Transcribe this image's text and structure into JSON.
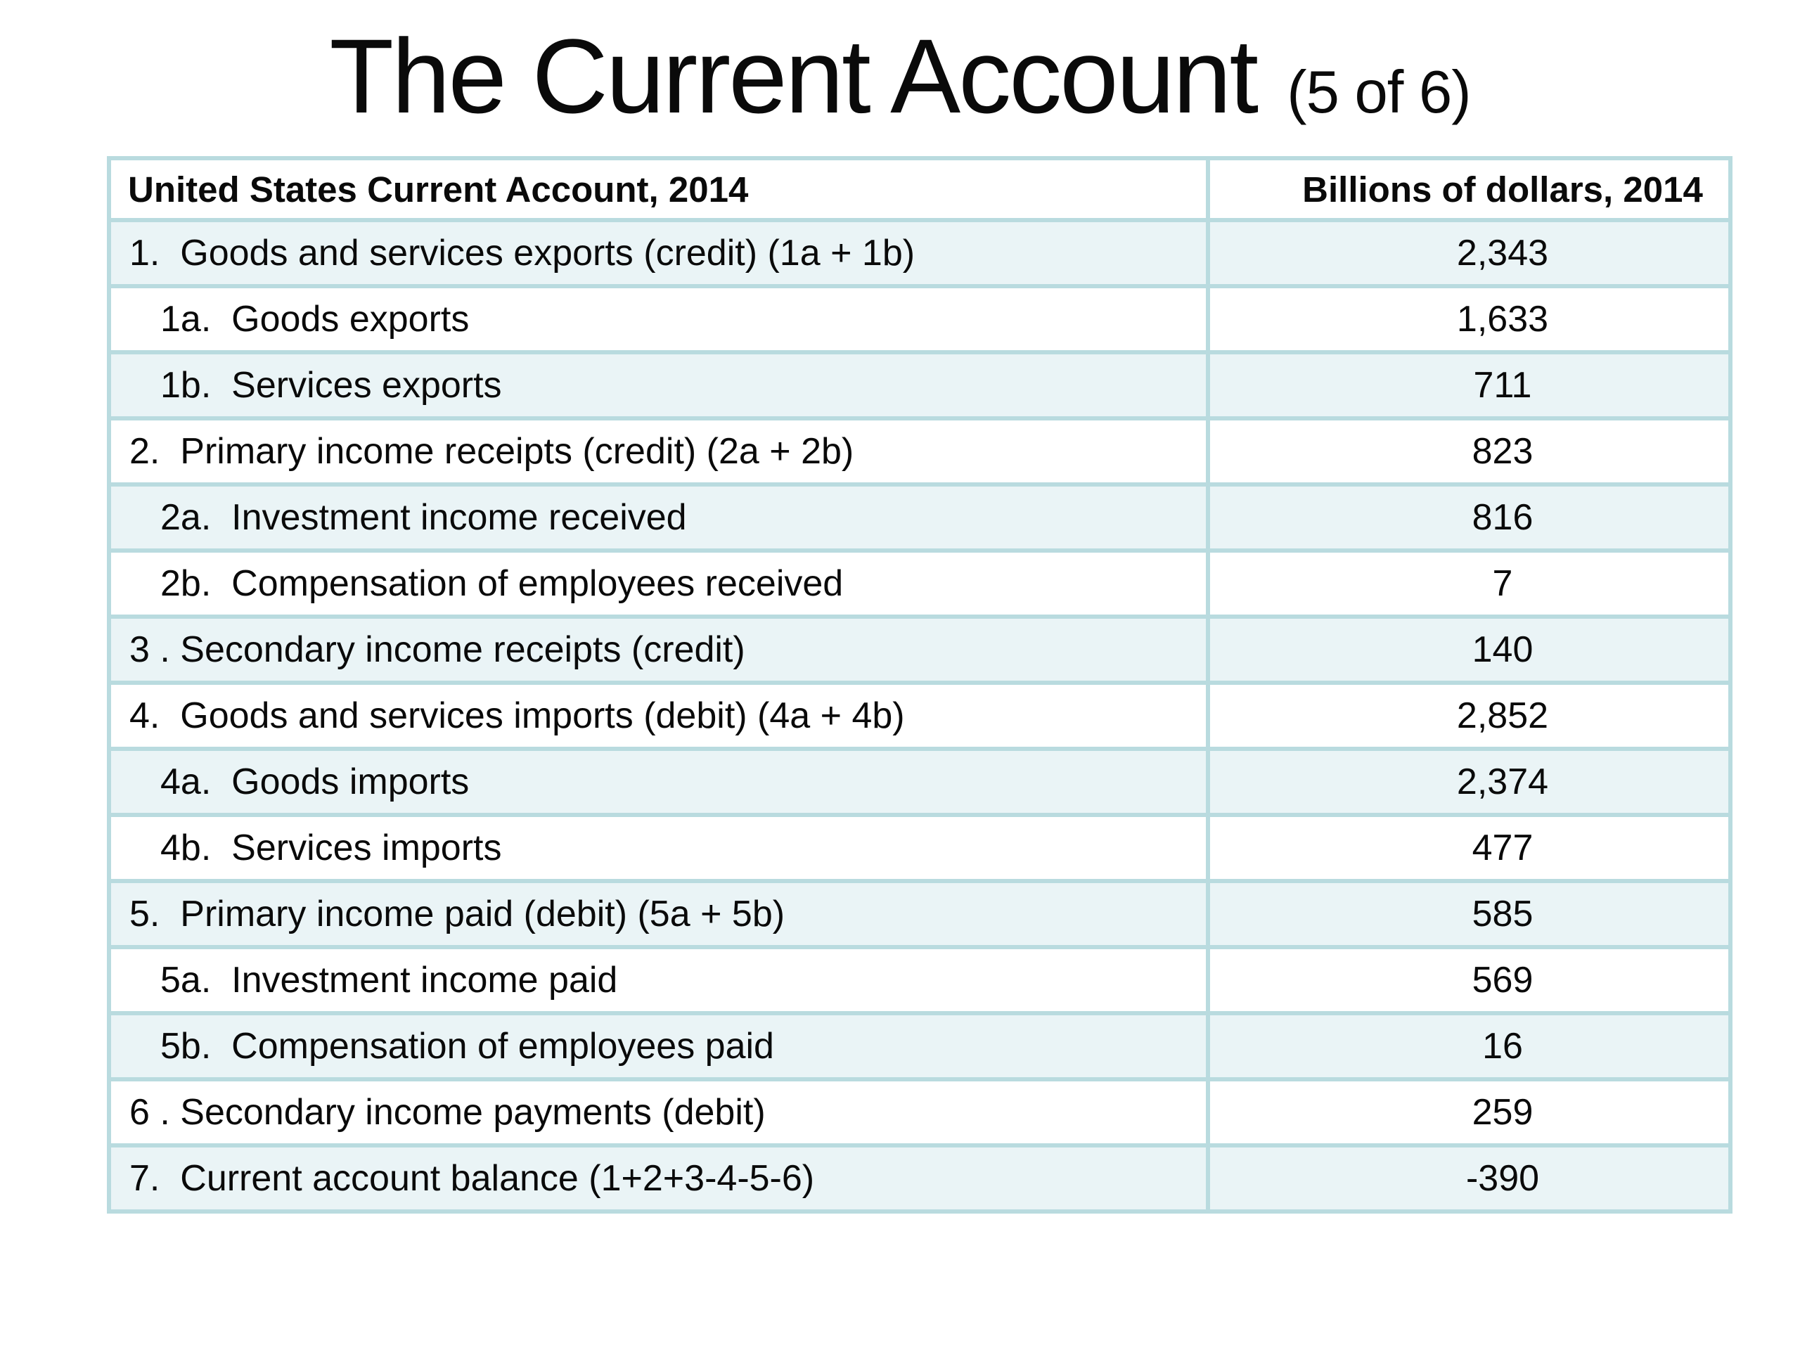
{
  "slide": {
    "title": "The Current Account",
    "title_suffix": "(5 of 6)"
  },
  "table": {
    "header": {
      "label_col": "United States Current Account, 2014",
      "value_col": "Billions of dollars, 2014"
    },
    "rows": [
      {
        "label": "1.  Goods and services exports (credit) (1a + 1b)",
        "value": "2,343",
        "indent": false
      },
      {
        "label": "1a.  Goods exports",
        "value": "1,633",
        "indent": true
      },
      {
        "label": "1b.  Services exports",
        "value": "711",
        "indent": true
      },
      {
        "label": "2.  Primary income receipts (credit) (2a + 2b)",
        "value": "823",
        "indent": false
      },
      {
        "label": "2a.  Investment income received",
        "value": "816",
        "indent": true
      },
      {
        "label": "2b.  Compensation of employees received",
        "value": "7",
        "indent": true
      },
      {
        "label": "3 . Secondary income receipts (credit)",
        "value": "140",
        "indent": false
      },
      {
        "label": "4.  Goods and services imports (debit) (4a + 4b)",
        "value": "2,852",
        "indent": false
      },
      {
        "label": "4a.  Goods imports",
        "value": "2,374",
        "indent": true
      },
      {
        "label": "4b.  Services imports",
        "value": "477",
        "indent": true
      },
      {
        "label": "5.  Primary income paid (debit) (5a + 5b)",
        "value": "585",
        "indent": false
      },
      {
        "label": "5a.  Investment income paid",
        "value": "569",
        "indent": true
      },
      {
        "label": "5b.  Compensation of employees paid",
        "value": "16",
        "indent": true
      },
      {
        "label": "6 . Secondary income payments (debit)",
        "value": "259",
        "indent": false
      },
      {
        "label": "7.  Current account balance (1+2+3-4-5-6)",
        "value": "-390",
        "indent": false
      }
    ]
  },
  "colors": {
    "page_background": "#ffffff",
    "table_border": "#b9dbdf",
    "row_alt_background": "#eaf4f6",
    "row_background": "#ffffff",
    "text": "#0a0a0a"
  }
}
